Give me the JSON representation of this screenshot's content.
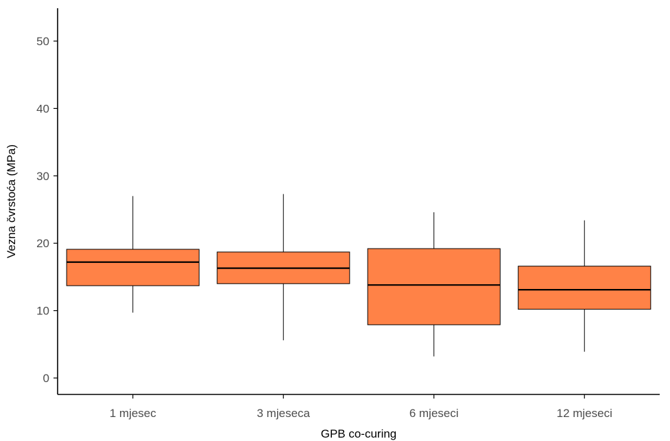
{
  "chart_data": {
    "type": "boxplot",
    "xlabel": "GPB co-curing",
    "ylabel": "Vezna čvrstoća (MPa)",
    "ylim": [
      -1.7,
      55
    ],
    "yticks": [
      0,
      10,
      20,
      30,
      40,
      50
    ],
    "categories": [
      "1 mjesec",
      "3 mjeseca",
      "6 mjeseci",
      "12 mjeseci"
    ],
    "boxes": [
      {
        "category": "1 mjesec",
        "whisker_low": 9.7,
        "q1": 13.7,
        "median": 17.2,
        "q3": 19.1,
        "whisker_high": 27.0
      },
      {
        "category": "3 mjeseca",
        "whisker_low": 5.6,
        "q1": 14.0,
        "median": 16.3,
        "q3": 18.7,
        "whisker_high": 27.3
      },
      {
        "category": "6 mjeseci",
        "whisker_low": 3.2,
        "q1": 7.9,
        "median": 13.8,
        "q3": 19.2,
        "whisker_high": 24.6
      },
      {
        "category": "12 mjeseci",
        "whisker_low": 3.9,
        "q1": 10.2,
        "median": 13.1,
        "q3": 16.6,
        "whisker_high": 23.4
      }
    ],
    "colors": {
      "box_fill": "#ff8247",
      "box_stroke": "#000000",
      "axis": "#000000",
      "tick_text": "#4d4d4d"
    },
    "grid": false,
    "legend": "none"
  }
}
